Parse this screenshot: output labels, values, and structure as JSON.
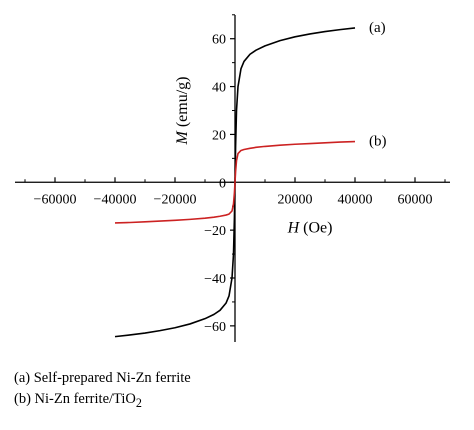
{
  "chart_data": {
    "type": "line",
    "title": "",
    "xlabel": {
      "var": "H",
      "unit": "(Oe)"
    },
    "ylabel": {
      "var": "M",
      "unit": "(emu/g)"
    },
    "xlim": [
      -75000,
      75000
    ],
    "ylim": [
      -68,
      72
    ],
    "xticks": [
      -60000,
      -40000,
      -20000,
      0,
      20000,
      40000,
      60000
    ],
    "yticks": [
      -60,
      -40,
      -20,
      0,
      20,
      40,
      60
    ],
    "axes_cross_at_origin": true,
    "grid": false,
    "series": [
      {
        "name": "(a)",
        "color": "#000000",
        "x": [
          -40000,
          -35000,
          -30000,
          -25000,
          -20000,
          -15000,
          -10000,
          -7000,
          -5000,
          -3000,
          -2000,
          -1000,
          -500,
          -200,
          0,
          200,
          500,
          1000,
          2000,
          3000,
          5000,
          7000,
          10000,
          15000,
          20000,
          25000,
          30000,
          35000,
          40000
        ],
        "y": [
          -64.5,
          -63.8,
          -63.0,
          -62.0,
          -60.8,
          -59.2,
          -57.0,
          -55.2,
          -53.5,
          -50.5,
          -47.5,
          -40.0,
          -30.0,
          -15.0,
          0,
          15.0,
          30.0,
          40.0,
          47.5,
          50.5,
          53.5,
          55.2,
          57.0,
          59.2,
          60.8,
          62.0,
          63.0,
          63.8,
          64.5
        ]
      },
      {
        "name": "(b)",
        "color": "#cc2222",
        "x": [
          -40000,
          -35000,
          -30000,
          -25000,
          -20000,
          -15000,
          -10000,
          -7000,
          -5000,
          -3000,
          -2000,
          -1000,
          -500,
          -200,
          0,
          200,
          500,
          1000,
          2000,
          3000,
          5000,
          7000,
          10000,
          15000,
          20000,
          25000,
          30000,
          35000,
          40000
        ],
        "y": [
          -17.0,
          -16.8,
          -16.5,
          -16.2,
          -15.9,
          -15.5,
          -15.0,
          -14.6,
          -14.2,
          -13.7,
          -13.3,
          -12.0,
          -9.0,
          -4.5,
          0,
          4.5,
          9.0,
          12.0,
          13.3,
          13.7,
          14.2,
          14.6,
          15.0,
          15.5,
          15.9,
          16.2,
          16.5,
          16.8,
          17.0
        ]
      }
    ]
  },
  "legend": {
    "line_a": "(a) Self-prepared Ni-Zn ferrite",
    "line_b_prefix": "(b) Ni-Zn ferrite/TiO",
    "line_b_sub": "2"
  }
}
